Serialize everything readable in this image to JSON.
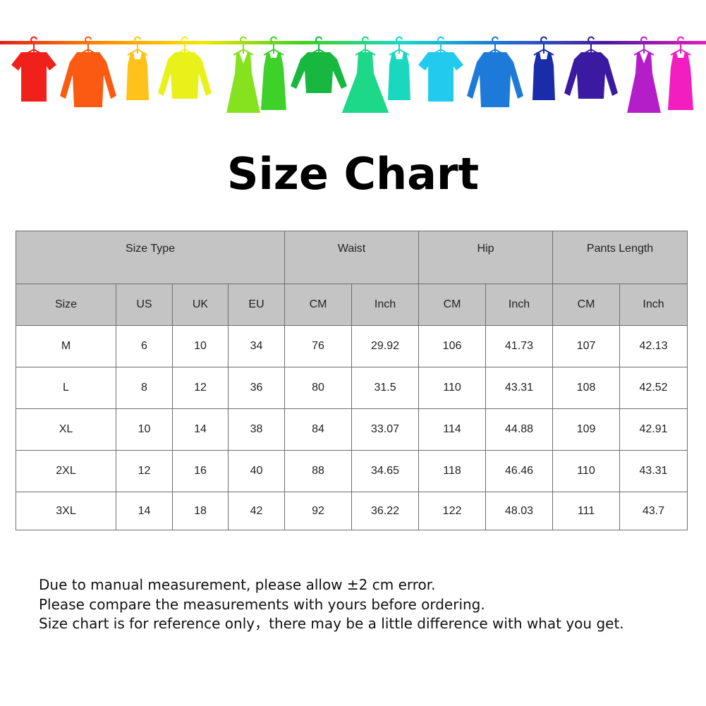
{
  "banner": {
    "rod_gradient": [
      "#e0201c",
      "#ff8a00",
      "#f7e600",
      "#3fd11e",
      "#17d9c6",
      "#1f6fd6",
      "#4a1a9e",
      "#e21fb8"
    ],
    "garments": [
      {
        "icon": "tshirt-icon",
        "color": "#f0201a"
      },
      {
        "icon": "shirt-icon",
        "color": "#fa5a12"
      },
      {
        "icon": "tank-top-icon",
        "color": "#ffc21a"
      },
      {
        "icon": "sweater-icon",
        "color": "#e8f21a"
      },
      {
        "icon": "dress-icon",
        "color": "#86e21e"
      },
      {
        "icon": "belted-dress-icon",
        "color": "#3ed12a"
      },
      {
        "icon": "long-sleeve-icon",
        "color": "#18b840"
      },
      {
        "icon": "flared-dress-icon",
        "color": "#1ed889"
      },
      {
        "icon": "tank-top-icon",
        "color": "#1ad8c0"
      },
      {
        "icon": "tshirt-icon",
        "color": "#22cbee"
      },
      {
        "icon": "shirt-icon",
        "color": "#1e7ad8"
      },
      {
        "icon": "tank-top-icon",
        "color": "#1a2ca8"
      },
      {
        "icon": "sweater-icon",
        "color": "#3a1aa0"
      },
      {
        "icon": "dress-icon",
        "color": "#b41ec8"
      },
      {
        "icon": "belted-dress-icon",
        "color": "#f21ec0"
      }
    ]
  },
  "title": "Size Chart",
  "table": {
    "group_headers": [
      "Size Type",
      "Waist",
      "Hip",
      "Pants Length"
    ],
    "sub_headers": [
      "Size",
      "US",
      "UK",
      "EU",
      "CM",
      "Inch",
      "CM",
      "Inch",
      "CM",
      "Inch"
    ],
    "rows": [
      [
        "M",
        "6",
        "10",
        "34",
        "76",
        "29.92",
        "106",
        "41.73",
        "107",
        "42.13"
      ],
      [
        "L",
        "8",
        "12",
        "36",
        "80",
        "31.5",
        "110",
        "43.31",
        "108",
        "42.52"
      ],
      [
        "XL",
        "10",
        "14",
        "38",
        "84",
        "33.07",
        "114",
        "44.88",
        "109",
        "42.91"
      ],
      [
        "2XL",
        "12",
        "16",
        "40",
        "88",
        "34.65",
        "118",
        "46.46",
        "110",
        "43.31"
      ],
      [
        "3XL",
        "14",
        "18",
        "42",
        "92",
        "36.22",
        "122",
        "48.03",
        "111",
        "43.7"
      ]
    ]
  },
  "notes": [
    "Due to manual measurement, please allow ±2 cm error.",
    "Please compare the measurements with yours before ordering.",
    "Size chart is for reference only，there may be a little difference with what you get."
  ]
}
